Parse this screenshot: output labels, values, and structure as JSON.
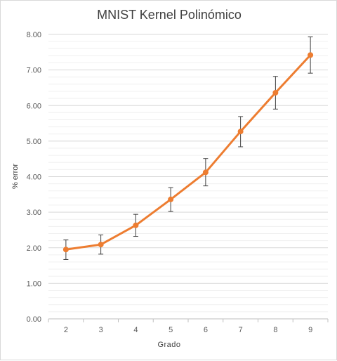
{
  "chart_data": {
    "type": "line",
    "title": "MNIST Kernel Polinómico",
    "xlabel": "Grado",
    "ylabel": "% error",
    "categories": [
      "2",
      "3",
      "4",
      "5",
      "6",
      "7",
      "8",
      "9"
    ],
    "series": [
      {
        "values": [
          1.95,
          2.09,
          2.63,
          3.36,
          4.12,
          5.27,
          6.36,
          7.42
        ],
        "error_low": [
          1.67,
          1.82,
          2.32,
          3.02,
          3.74,
          4.84,
          5.9,
          6.91
        ],
        "error_high": [
          2.22,
          2.36,
          2.94,
          3.69,
          4.51,
          5.69,
          6.82,
          7.93
        ]
      }
    ],
    "ylim": [
      0,
      8
    ],
    "yticks": [
      "0.00",
      "1.00",
      "2.00",
      "3.00",
      "4.00",
      "5.00",
      "6.00",
      "7.00",
      "8.00"
    ],
    "grid": true,
    "minor_grid": true,
    "legend": "none",
    "line_color": "#ED7D31"
  }
}
